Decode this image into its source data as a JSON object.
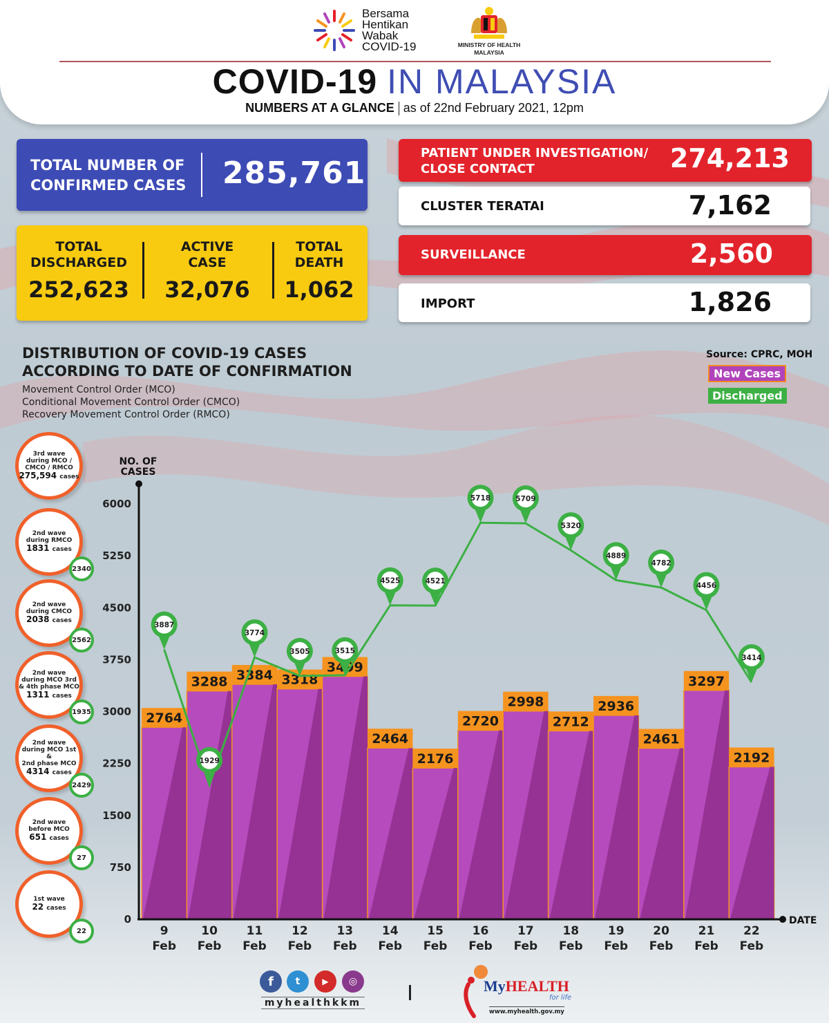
{
  "header": {
    "campaign_logo_text": [
      "Bersama",
      "Hentikan",
      "Wabak",
      "COVID-19"
    ],
    "ministry_line1": "MINISTRY OF HEALTH",
    "ministry_line2": "MALAYSIA",
    "title_bold": "COVID-19",
    "title_light": "IN MALAYSIA",
    "subtitle_bold": "NUMBERS AT A GLANCE",
    "subtitle_rest": "as of 22nd February 2021, 12pm"
  },
  "summary": {
    "confirmed_label": [
      "TOTAL NUMBER OF",
      "CONFIRMED CASES"
    ],
    "confirmed_value": "285,761",
    "discharged_label": [
      "TOTAL",
      "DISCHARGED"
    ],
    "discharged_value": "252,623",
    "active_label": [
      "ACTIVE",
      "CASE"
    ],
    "active_value": "32,076",
    "death_label": [
      "TOTAL",
      "DEATH"
    ],
    "death_value": "1,062"
  },
  "right_stats": [
    {
      "label": [
        "PATIENT UNDER INVESTIGATION/",
        "CLOSE CONTACT"
      ],
      "value": "274,213",
      "style": "red"
    },
    {
      "label": [
        "CLUSTER TERATAI"
      ],
      "value": "7,162",
      "style": "white"
    },
    {
      "label": [
        "SURVEILLANCE"
      ],
      "value": "2,560",
      "style": "red"
    },
    {
      "label": [
        "IMPORT"
      ],
      "value": "1,826",
      "style": "white"
    }
  ],
  "distribution": {
    "title": [
      "DISTRIBUTION OF COVID-19 CASES",
      "ACCORDING TO DATE OF CONFIRMATION"
    ],
    "subtitles": [
      "Movement Control Order (MCO)",
      "Conditional Movement Control Order (CMCO)",
      "Recovery Movement Control Order (RMCO)"
    ],
    "source": "Source: CPRC, MOH"
  },
  "waves": [
    {
      "lines": [
        "3rd wave",
        "during MCO /",
        "CMCO / RMCO"
      ],
      "count": "275,594",
      "unit": "cases",
      "discharged": ""
    },
    {
      "lines": [
        "2nd wave",
        "during RMCO"
      ],
      "count": "1831",
      "unit": "cases",
      "discharged": "2340"
    },
    {
      "lines": [
        "2nd wave",
        "during CMCO"
      ],
      "count": "2038",
      "unit": "cases",
      "discharged": "2562"
    },
    {
      "lines": [
        "2nd wave",
        "during MCO 3rd",
        "& 4th phase MCO"
      ],
      "count": "1311",
      "unit": "cases",
      "discharged": "1935"
    },
    {
      "lines": [
        "2nd wave",
        "during MCO 1st &",
        "2nd phase MCO"
      ],
      "count": "4314",
      "unit": "cases",
      "discharged": "2429"
    },
    {
      "lines": [
        "2nd wave",
        "before MCO"
      ],
      "count": "651",
      "unit": "cases",
      "discharged": "27"
    },
    {
      "lines": [
        "1st wave"
      ],
      "count": "22",
      "unit": "cases",
      "discharged": "22"
    }
  ],
  "chart_data": {
    "type": "bar",
    "title": "DISTRIBUTION OF COVID-19 CASES ACCORDING TO DATE OF CONFIRMATION",
    "xlabel": "DATE",
    "ylabel": "NO. OF CASES",
    "ylim": [
      0,
      6000
    ],
    "yticks": [
      0,
      750,
      1500,
      2250,
      3000,
      3750,
      4500,
      5250,
      6000
    ],
    "grid": false,
    "legend": "top-right",
    "categories": [
      [
        "9",
        "Feb"
      ],
      [
        "10",
        "Feb"
      ],
      [
        "11",
        "Feb"
      ],
      [
        "12",
        "Feb"
      ],
      [
        "13",
        "Feb"
      ],
      [
        "14",
        "Feb"
      ],
      [
        "15",
        "Feb"
      ],
      [
        "16",
        "Feb"
      ],
      [
        "17",
        "Feb"
      ],
      [
        "18",
        "Feb"
      ],
      [
        "19",
        "Feb"
      ],
      [
        "20",
        "Feb"
      ],
      [
        "21",
        "Feb"
      ],
      [
        "22",
        "Feb"
      ]
    ],
    "series": [
      {
        "name": "New Cases",
        "kind": "bar",
        "color": "#b043ba",
        "label_color": "#f5931f",
        "values": [
          2764,
          3288,
          3384,
          3318,
          3499,
          2464,
          2176,
          2720,
          2998,
          2712,
          2936,
          2461,
          3297,
          2192
        ]
      },
      {
        "name": "Discharged",
        "kind": "line",
        "color": "#3cb044",
        "values": [
          3887,
          1929,
          3774,
          3505,
          3515,
          4525,
          4521,
          5718,
          5709,
          5320,
          4889,
          4782,
          4456,
          3414
        ]
      }
    ]
  },
  "footer": {
    "social_icons": [
      "facebook-icon",
      "twitter-icon",
      "youtube-icon",
      "instagram-icon"
    ],
    "handle": "myhealthkkm",
    "brand_my": "My",
    "brand_health": "HEALTH",
    "brand_tagline": "for life",
    "url": "www.myhealth.gov.my"
  },
  "colors": {
    "blue": "#3d4bb5",
    "yellow": "#f8cb11",
    "red": "#e3232b",
    "purple": "#b043ba",
    "orange": "#f5931f",
    "green": "#3cb044"
  }
}
